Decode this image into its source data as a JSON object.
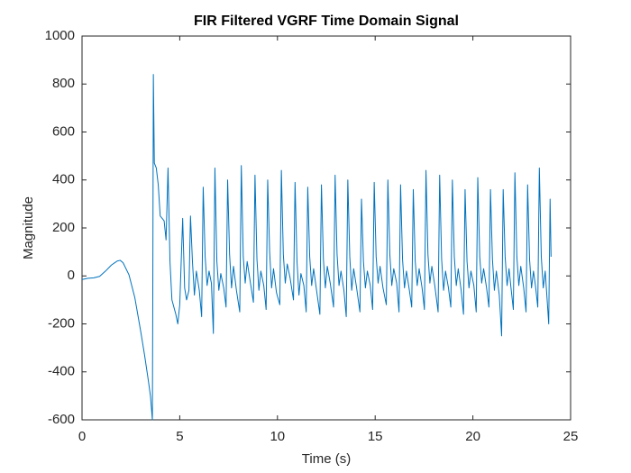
{
  "chart_data": {
    "type": "line",
    "title": "FIR Filtered VGRF Time Domain Signal",
    "xlabel": "Time (s)",
    "ylabel": "Magnitude",
    "color": "#0072bd",
    "xlim": [
      0,
      25
    ],
    "xticks": [
      0,
      5,
      10,
      15,
      20,
      25
    ],
    "ylim": [
      -600,
      1000
    ],
    "yticks": [
      -600,
      -400,
      -200,
      0,
      200,
      400,
      600,
      800,
      1000
    ],
    "x": [
      0,
      0.3,
      0.6,
      0.9,
      1.2,
      1.5,
      1.8,
      1.95,
      2.1,
      2.4,
      2.7,
      3.0,
      3.2,
      3.4,
      3.5,
      3.6,
      3.62,
      3.65,
      3.7,
      3.8,
      3.9,
      4.0,
      4.2,
      4.3,
      4.4,
      4.5,
      4.6,
      4.8,
      4.9,
      5.0,
      5.15,
      5.25,
      5.35,
      5.47,
      5.55,
      5.65,
      5.75,
      5.85,
      6.0,
      6.12,
      6.2,
      6.3,
      6.4,
      6.5,
      6.62,
      6.72,
      6.8,
      6.9,
      7.0,
      7.1,
      7.25,
      7.37,
      7.45,
      7.55,
      7.65,
      7.75,
      7.9,
      8.07,
      8.15,
      8.25,
      8.35,
      8.45,
      8.6,
      8.77,
      8.85,
      8.95,
      9.05,
      9.15,
      9.3,
      9.42,
      9.5,
      9.6,
      9.7,
      9.8,
      9.95,
      10.12,
      10.2,
      10.3,
      10.4,
      10.5,
      10.65,
      10.82,
      10.9,
      11.0,
      11.1,
      11.2,
      11.35,
      11.47,
      11.55,
      11.65,
      11.75,
      11.85,
      12.0,
      12.17,
      12.25,
      12.35,
      12.45,
      12.55,
      12.7,
      12.87,
      12.95,
      13.05,
      13.15,
      13.25,
      13.4,
      13.52,
      13.6,
      13.7,
      13.8,
      13.9,
      14.05,
      14.22,
      14.3,
      14.4,
      14.5,
      14.6,
      14.75,
      14.87,
      14.95,
      15.05,
      15.15,
      15.25,
      15.4,
      15.57,
      15.65,
      15.75,
      15.85,
      15.95,
      16.1,
      16.22,
      16.3,
      16.4,
      16.5,
      16.6,
      16.75,
      16.87,
      16.95,
      17.05,
      17.15,
      17.25,
      17.4,
      17.52,
      17.6,
      17.7,
      17.8,
      17.9,
      18.05,
      18.22,
      18.3,
      18.4,
      18.5,
      18.6,
      18.75,
      18.87,
      18.95,
      19.05,
      19.15,
      19.25,
      19.4,
      19.52,
      19.6,
      19.7,
      19.8,
      19.9,
      20.05,
      20.17,
      20.25,
      20.35,
      20.45,
      20.55,
      20.7,
      20.82,
      20.9,
      21.0,
      21.1,
      21.2,
      21.35,
      21.47,
      21.55,
      21.65,
      21.75,
      21.85,
      21.95,
      22.07,
      22.15,
      22.25,
      22.35,
      22.45,
      22.6,
      22.72,
      22.8,
      22.9,
      23.0,
      23.1,
      23.2,
      23.32,
      23.4,
      23.5,
      23.6,
      23.7,
      23.8,
      23.88,
      23.95,
      24.0
    ],
    "values": [
      -15,
      -10,
      -8,
      -2,
      20,
      45,
      62,
      65,
      55,
      5,
      -90,
      -230,
      -330,
      -440,
      -500,
      -600,
      -100,
      840,
      470,
      450,
      380,
      250,
      230,
      150,
      450,
      60,
      -100,
      -160,
      -200,
      -120,
      240,
      -50,
      -100,
      -60,
      250,
      60,
      -80,
      20,
      -60,
      -170,
      370,
      80,
      -40,
      20,
      -30,
      -240,
      450,
      60,
      -60,
      10,
      -50,
      -130,
      400,
      90,
      -50,
      40,
      -60,
      -150,
      460,
      80,
      -30,
      60,
      -20,
      -110,
      420,
      70,
      -60,
      20,
      -40,
      -140,
      400,
      100,
      -50,
      30,
      -70,
      -120,
      440,
      90,
      -30,
      50,
      -10,
      -100,
      390,
      60,
      -80,
      10,
      -40,
      -150,
      370,
      80,
      -40,
      30,
      -60,
      -160,
      380,
      70,
      -50,
      40,
      -30,
      -130,
      420,
      90,
      -40,
      20,
      -60,
      -170,
      400,
      80,
      -60,
      30,
      -50,
      -150,
      320,
      60,
      -50,
      20,
      -40,
      -140,
      390,
      80,
      -30,
      40,
      -50,
      -120,
      400,
      90,
      -40,
      30,
      -30,
      -150,
      380,
      70,
      -50,
      20,
      -60,
      -130,
      360,
      60,
      -40,
      30,
      -50,
      -140,
      440,
      90,
      -30,
      40,
      -40,
      -150,
      420,
      70,
      -60,
      20,
      -50,
      -130,
      400,
      80,
      -40,
      30,
      -60,
      -160,
      360,
      60,
      -50,
      20,
      -40,
      -150,
      410,
      80,
      -30,
      30,
      -50,
      -130,
      360,
      70,
      -60,
      20,
      -80,
      -250,
      360,
      80,
      -40,
      30,
      -50,
      -140,
      430,
      80,
      -40,
      40,
      -50,
      -150,
      380,
      70,
      -50,
      20,
      -40,
      -130,
      450,
      80,
      -50,
      20,
      -100,
      -200,
      320,
      80
    ]
  }
}
